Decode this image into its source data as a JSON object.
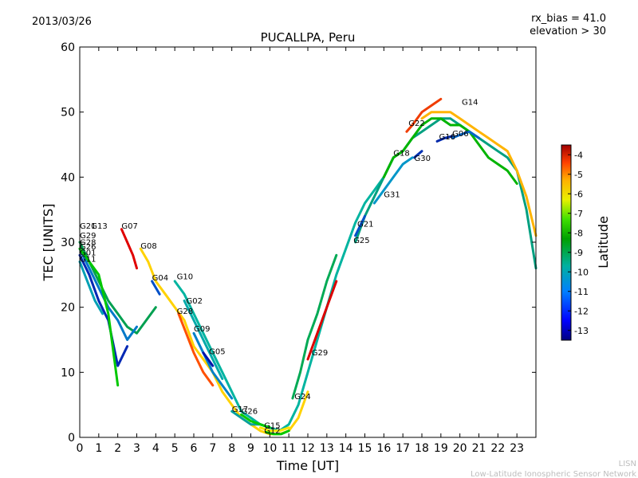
{
  "header": {
    "date": "2013/03/26",
    "title": "PUCALLPA, Peru",
    "rx_bias": "rx_bias = 41.0",
    "elevation": "elevation > 30"
  },
  "credit": {
    "line1": "LISN",
    "line2": "Low-Latitude Ionospheric Sensor Network"
  },
  "colorbar": {
    "label": "Latitude",
    "range": [
      -13.5,
      -3.5
    ],
    "ticks": [
      "-4",
      "-5",
      "-6",
      "-7",
      "-8",
      "-9",
      "-10",
      "-11",
      "-12",
      "-13"
    ]
  },
  "chart_data": {
    "type": "line",
    "title": "PUCALLPA, Peru",
    "xlabel": "Time [UT]",
    "ylabel": "TEC [UNITS]",
    "xlim": [
      0,
      24
    ],
    "ylim": [
      0,
      60
    ],
    "xticks": [
      "0",
      "1",
      "2",
      "3",
      "4",
      "5",
      "6",
      "7",
      "8",
      "9",
      "10",
      "11",
      "12",
      "13",
      "14",
      "15",
      "16",
      "17",
      "18",
      "19",
      "20",
      "21",
      "22",
      "23"
    ],
    "yticks": [
      "0",
      "10",
      "20",
      "30",
      "40",
      "50",
      "60"
    ],
    "grid": false,
    "series": [
      {
        "name": "G21",
        "lat": -10.5,
        "color": "#00a050",
        "x": [
          0.0,
          0.5,
          1.0,
          1.5,
          2.0,
          2.5,
          3.0,
          3.5,
          4.0
        ],
        "y": [
          30,
          27,
          24,
          21,
          19,
          17,
          16,
          18,
          20
        ]
      },
      {
        "name": "G13",
        "lat": -11.5,
        "color": "#0078c8",
        "x": [
          0.0,
          0.5,
          1.0,
          1.5,
          2.0,
          2.5,
          3.0
        ],
        "y": [
          29,
          26,
          23,
          20,
          18,
          15,
          17
        ]
      },
      {
        "name": "G29",
        "lat": -12.5,
        "color": "#0028b4",
        "x": [
          0.0,
          0.5,
          1.0,
          1.5,
          2.0,
          2.5
        ],
        "y": [
          28,
          25,
          21,
          18,
          11,
          14
        ]
      },
      {
        "name": "G01",
        "lat": -8.5,
        "color": "#00c800",
        "x": [
          0.0,
          0.5,
          1.0,
          1.5,
          2.0
        ],
        "y": [
          29,
          27,
          25,
          19,
          8
        ]
      },
      {
        "name": "G11",
        "lat": -11.0,
        "color": "#00a0b4",
        "x": [
          0.0,
          0.4,
          0.8,
          1.2
        ],
        "y": [
          27,
          24,
          21,
          19
        ]
      },
      {
        "name": "G07",
        "lat": -4.3,
        "color": "#e00000",
        "x": [
          2.2,
          2.5,
          2.8,
          3.0
        ],
        "y": [
          32,
          30,
          28,
          26
        ]
      },
      {
        "name": "G08",
        "lat": -6.5,
        "color": "#ffd200",
        "x": [
          3.2,
          3.6,
          4.0,
          4.5,
          5.0,
          5.5,
          6.0,
          6.5,
          7.0,
          7.5,
          8.0,
          8.5,
          9.0,
          9.5,
          10.0,
          10.5,
          11.0,
          11.5,
          12.0
        ],
        "y": [
          29,
          27,
          24,
          22,
          20,
          18,
          14,
          12,
          10,
          7,
          5,
          3,
          2,
          1,
          0.5,
          0.5,
          1,
          3,
          7
        ]
      },
      {
        "name": "G04",
        "lat": -12.0,
        "color": "#0050c8",
        "x": [
          3.8,
          4.2
        ],
        "y": [
          24,
          22
        ]
      },
      {
        "name": "G10",
        "lat": -10.0,
        "color": "#00b4a0",
        "x": [
          5.0,
          5.5,
          6.0,
          6.5,
          7.0,
          7.5,
          8.0,
          8.5,
          9.0,
          9.5,
          10.0,
          10.5,
          11.0,
          11.5,
          12.0,
          12.5,
          13.0,
          13.5,
          14.0,
          14.5,
          15.0,
          15.5,
          16.0
        ],
        "y": [
          24,
          22,
          19,
          16,
          13,
          10,
          7,
          4,
          3,
          2,
          1.5,
          1,
          2,
          5,
          10,
          15,
          20,
          25,
          29,
          33,
          36,
          38,
          40
        ]
      },
      {
        "name": "G02",
        "lat": -10.8,
        "color": "#00aaaa",
        "x": [
          5.5,
          6.0,
          6.5,
          7.0,
          7.5
        ],
        "y": [
          21,
          18,
          15,
          12,
          9
        ]
      },
      {
        "name": "G28",
        "lat": -5.5,
        "color": "#ff5000",
        "x": [
          5.2,
          5.6,
          6.0,
          6.5,
          7.0
        ],
        "y": [
          19,
          16,
          13,
          10,
          8
        ]
      },
      {
        "name": "G09",
        "lat": -11.5,
        "color": "#0080c8",
        "x": [
          6.0,
          6.5,
          7.0,
          7.5,
          8.0
        ],
        "y": [
          16,
          13,
          10,
          8,
          6
        ]
      },
      {
        "name": "G05",
        "lat": -12.8,
        "color": "#0014aa",
        "x": [
          6.5,
          7.0
        ],
        "y": [
          13,
          11
        ]
      },
      {
        "name": "G17",
        "lat": -10.0,
        "color": "#00a0a0",
        "x": [
          8.0,
          8.5,
          9.0,
          9.5,
          10.0
        ],
        "y": [
          4,
          3,
          2,
          2,
          1.5
        ]
      },
      {
        "name": "G26",
        "lat": -8.0,
        "color": "#00cc00",
        "x": [
          8.5,
          9.0,
          9.5,
          10.0
        ],
        "y": [
          3.5,
          2.5,
          2,
          1.5
        ]
      },
      {
        "name": "G15",
        "lat": -6.8,
        "color": "#ffe600",
        "x": [
          9.5,
          10.0,
          10.5,
          11.0
        ],
        "y": [
          1.5,
          1,
          1,
          1.5
        ]
      },
      {
        "name": "G12",
        "lat": -8.5,
        "color": "#00c800",
        "x": [
          9.8,
          10.2,
          10.6,
          11.0
        ],
        "y": [
          0.8,
          0.5,
          0.5,
          1
        ]
      },
      {
        "name": "G24",
        "lat": -9.5,
        "color": "#00aa55",
        "x": [
          11.2,
          11.6,
          12.0,
          12.5,
          13.0,
          13.5
        ],
        "y": [
          6,
          10,
          15,
          19,
          24,
          28
        ]
      },
      {
        "name": "G25",
        "lat": -10.5,
        "color": "#00a080",
        "x": [
          14.5,
          15.0,
          15.5,
          16.0,
          16.5,
          17.0,
          17.5,
          18.0,
          18.5,
          19.0,
          19.5,
          20.0,
          20.5,
          21.0,
          21.5,
          22.0,
          22.5,
          23.0,
          23.5,
          24.0
        ],
        "y": [
          30,
          34,
          37,
          40,
          43,
          44,
          46,
          47,
          48,
          49,
          49,
          48,
          47,
          46,
          45,
          44,
          43,
          41,
          35,
          26
        ]
      },
      {
        "name": "G14",
        "lat": -6.2,
        "color": "#ffb400",
        "x": [
          18.0,
          18.5,
          19.0,
          19.5,
          20.0,
          20.5,
          21.0,
          21.5,
          22.0,
          22.5,
          23.0,
          23.5,
          24.0
        ],
        "y": [
          49,
          50,
          50,
          50,
          49,
          48,
          47,
          46,
          45,
          44,
          41,
          37,
          31
        ]
      },
      {
        "name": "G22",
        "lat": -4.8,
        "color": "#f03c00",
        "x": [
          17.2,
          17.5,
          18.0,
          18.5,
          19.0
        ],
        "y": [
          47,
          48,
          50,
          51,
          52
        ]
      },
      {
        "name": "G18",
        "lat": -8.8,
        "color": "#00b400",
        "x": [
          16.0,
          16.5,
          17.0,
          17.5,
          18.0,
          18.5,
          19.0,
          19.5,
          20.0,
          20.5,
          21.0,
          21.5,
          22.0,
          22.5,
          23.0
        ],
        "y": [
          40,
          43,
          44,
          46,
          48,
          49,
          49,
          48,
          48,
          47,
          45,
          43,
          42,
          41,
          39
        ]
      },
      {
        "name": "G30",
        "lat": -12.5,
        "color": "#0032b4",
        "x": [
          17.6,
          18.0
        ],
        "y": [
          43,
          44
        ]
      },
      {
        "name": "G16",
        "lat": -12.6,
        "color": "#0028aa",
        "x": [
          18.8,
          19.2,
          19.6
        ],
        "y": [
          45.5,
          46,
          46.3
        ]
      },
      {
        "name": "G06",
        "lat": -11.8,
        "color": "#0064c8",
        "x": [
          19.6,
          20.0,
          20.5,
          21.0
        ],
        "y": [
          46,
          46.5,
          47,
          46
        ]
      },
      {
        "name": "G31",
        "lat": -11.3,
        "color": "#0096c8",
        "x": [
          15.5,
          16.0,
          16.5,
          17.0,
          17.5
        ],
        "y": [
          36,
          38,
          40,
          42,
          43
        ]
      },
      {
        "name": "G21",
        "lat": -12.0,
        "color": "#0050c8",
        "x": [
          14.5,
          15.0
        ],
        "y": [
          31,
          34
        ]
      },
      {
        "name": "G29",
        "lat": -4.5,
        "color": "#dc0000",
        "x": [
          12.0,
          12.5,
          13.0,
          13.5
        ],
        "y": [
          12,
          16,
          20,
          24
        ]
      }
    ],
    "labels": [
      {
        "text": "G21",
        "x": 0.0,
        "y": 32.1
      },
      {
        "text": "G13",
        "x": 0.6,
        "y": 32.1
      },
      {
        "text": "G29",
        "x": 0.0,
        "y": 30.6
      },
      {
        "text": "G28",
        "x": 0.0,
        "y": 29.6
      },
      {
        "text": "G26",
        "x": 0.0,
        "y": 28.9
      },
      {
        "text": "G01",
        "x": 0.0,
        "y": 28.0
      },
      {
        "text": "G11",
        "x": 0.0,
        "y": 27.0
      },
      {
        "text": "G07",
        "x": 2.2,
        "y": 32.1
      },
      {
        "text": "G08",
        "x": 3.2,
        "y": 29.0
      },
      {
        "text": "G04",
        "x": 3.8,
        "y": 24.1
      },
      {
        "text": "G10",
        "x": 5.1,
        "y": 24.3
      },
      {
        "text": "G02",
        "x": 5.6,
        "y": 20.6
      },
      {
        "text": "G28",
        "x": 5.1,
        "y": 19.0
      },
      {
        "text": "G09",
        "x": 6.0,
        "y": 16.3
      },
      {
        "text": "G05",
        "x": 6.8,
        "y": 12.8
      },
      {
        "text": "G17",
        "x": 8.0,
        "y": 3.9
      },
      {
        "text": "G26",
        "x": 8.5,
        "y": 3.6
      },
      {
        "text": "G15",
        "x": 9.7,
        "y": 1.4
      },
      {
        "text": "G12",
        "x": 9.7,
        "y": 0.6
      },
      {
        "text": "G24",
        "x": 11.3,
        "y": 5.9
      },
      {
        "text": "G29",
        "x": 12.2,
        "y": 12.6
      },
      {
        "text": "G25",
        "x": 14.4,
        "y": 29.9
      },
      {
        "text": "G21",
        "x": 14.6,
        "y": 32.4
      },
      {
        "text": "G31",
        "x": 16.0,
        "y": 36.9
      },
      {
        "text": "G18",
        "x": 16.5,
        "y": 43.3
      },
      {
        "text": "G30",
        "x": 17.6,
        "y": 42.5
      },
      {
        "text": "G22",
        "x": 17.3,
        "y": 47.9
      },
      {
        "text": "G16",
        "x": 18.9,
        "y": 45.8
      },
      {
        "text": "G06",
        "x": 19.6,
        "y": 46.3
      },
      {
        "text": "G14",
        "x": 20.1,
        "y": 51.1
      }
    ]
  }
}
